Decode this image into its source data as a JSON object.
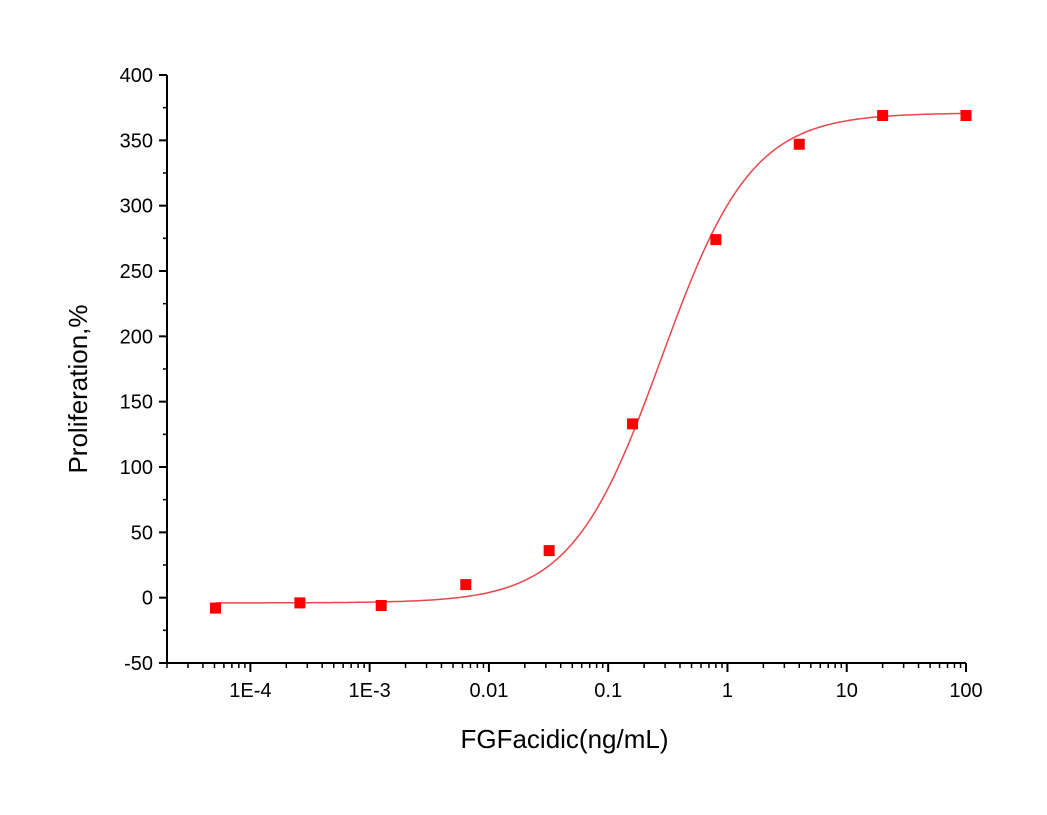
{
  "chart_data": {
    "type": "scatter",
    "title": "",
    "xlabel": "FGFacidic(ng/mL)",
    "ylabel": "Proliferation,%",
    "xscale": "log",
    "xlim": [
      2e-05,
      100
    ],
    "ylim": [
      -50,
      400
    ],
    "grid": false,
    "legend": "none",
    "x_ticks": [
      {
        "value": 0.0001,
        "label": "1E-4"
      },
      {
        "value": 0.001,
        "label": "1E-3"
      },
      {
        "value": 0.01,
        "label": "0.01"
      },
      {
        "value": 0.1,
        "label": "0.1"
      },
      {
        "value": 1,
        "label": "1"
      },
      {
        "value": 10,
        "label": "10"
      },
      {
        "value": 100,
        "label": "100"
      }
    ],
    "y_ticks": [
      {
        "value": -50,
        "label": "-50"
      },
      {
        "value": 0,
        "label": "0"
      },
      {
        "value": 50,
        "label": "50"
      },
      {
        "value": 100,
        "label": "100"
      },
      {
        "value": 150,
        "label": "150"
      },
      {
        "value": 200,
        "label": "200"
      },
      {
        "value": 250,
        "label": "250"
      },
      {
        "value": 300,
        "label": "300"
      },
      {
        "value": 350,
        "label": "350"
      },
      {
        "value": 400,
        "label": "400"
      }
    ],
    "series": [
      {
        "kind": "points",
        "color": "#ff0000",
        "marker": "square",
        "x": [
          5.1e-05,
          0.00026,
          0.00125,
          0.0064,
          0.032,
          0.16,
          0.8,
          4,
          20,
          100
        ],
        "y": [
          -8,
          -4,
          -6,
          10,
          36,
          133,
          274,
          347,
          369,
          369
        ]
      },
      {
        "kind": "fit",
        "fit_type": "4-parameter logistic",
        "color": "#e8474c",
        "bottom": -4,
        "top": 371,
        "ec50": 0.28,
        "hill": 1.15
      }
    ]
  }
}
